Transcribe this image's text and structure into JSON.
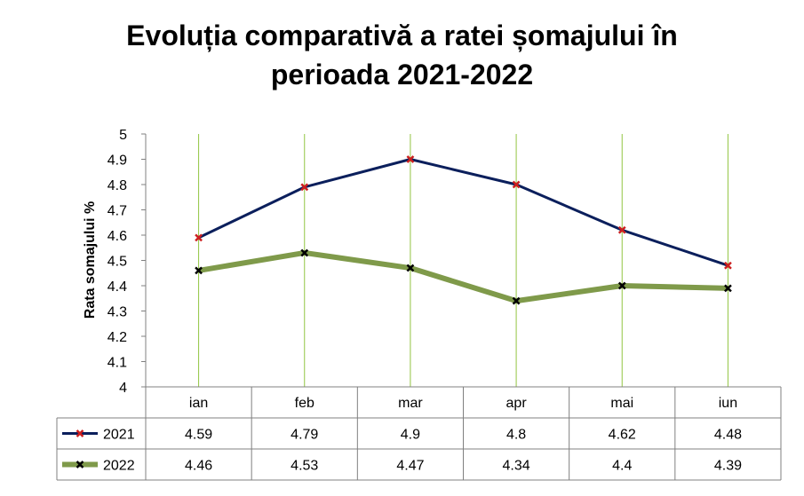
{
  "chart_data": {
    "type": "line",
    "title_line1": "Evoluția comparativă a ratei șomajului în",
    "title_line2": "perioada 2021-2022",
    "ylabel": "Rata somajului %",
    "xlabel": "",
    "categories": [
      "ian",
      "feb",
      "mar",
      "apr",
      "mai",
      "iun"
    ],
    "ylim": [
      4,
      5
    ],
    "yticks": [
      "4",
      "4.1",
      "4.2",
      "4.3",
      "4.4",
      "4.5",
      "4.6",
      "4.7",
      "4.8",
      "4.9",
      "5"
    ],
    "grid": "vertical",
    "legend": "data-table",
    "series": [
      {
        "name": "2021",
        "values": [
          4.59,
          4.79,
          4.9,
          4.8,
          4.62,
          4.48
        ],
        "labels": [
          "4.59",
          "4.79",
          "4.9",
          "4.8",
          "4.62",
          "4.48"
        ],
        "color": "#0b1f5c",
        "marker_color": "#cc1f1f"
      },
      {
        "name": "2022",
        "values": [
          4.46,
          4.53,
          4.47,
          4.34,
          4.4,
          4.39
        ],
        "labels": [
          "4.46",
          "4.53",
          "4.47",
          "4.34",
          "4.4",
          "4.39"
        ],
        "color": "#7f9a4a",
        "marker_color": "#000000"
      }
    ],
    "colors": {
      "gridline": "#92c542",
      "axis": "#808080"
    }
  }
}
